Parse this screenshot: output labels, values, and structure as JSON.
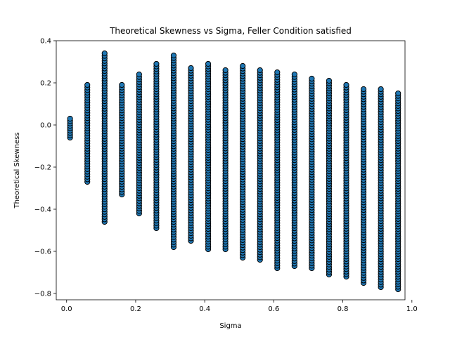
{
  "chart_data": {
    "type": "scatter",
    "title": "Theoretical Skewness vs Sigma, Feller Condition satisfied",
    "xlabel": "Sigma",
    "ylabel": "Theoretical Skewness",
    "xlim": [
      -0.03,
      0.98
    ],
    "ylim": [
      -0.83,
      0.4
    ],
    "xticks": [
      0.0,
      0.2,
      0.4,
      0.6,
      0.8,
      1.0
    ],
    "xtick_labels": [
      "0.0",
      "0.2",
      "0.4",
      "0.6",
      "0.8",
      "1.0"
    ],
    "yticks": [
      -0.8,
      -0.6,
      -0.4,
      -0.2,
      0.0,
      0.2,
      0.4
    ],
    "ytick_labels": [
      "−0.8",
      "−0.6",
      "−0.4",
      "−0.2",
      "0.0",
      "0.2",
      "0.4"
    ],
    "grid": false,
    "marker_color": "#1f77b4",
    "marker_edge_color": "#000000",
    "columns": [
      {
        "x": 0.01,
        "ymin": -0.06,
        "ymax": 0.03
      },
      {
        "x": 0.06,
        "ymin": -0.27,
        "ymax": 0.19
      },
      {
        "x": 0.11,
        "ymin": -0.46,
        "ymax": 0.34
      },
      {
        "x": 0.16,
        "ymin": -0.33,
        "ymax": 0.19
      },
      {
        "x": 0.21,
        "ymin": -0.42,
        "ymax": 0.24
      },
      {
        "x": 0.26,
        "ymin": -0.49,
        "ymax": 0.29
      },
      {
        "x": 0.31,
        "ymin": -0.58,
        "ymax": 0.33
      },
      {
        "x": 0.36,
        "ymin": -0.55,
        "ymax": 0.27
      },
      {
        "x": 0.41,
        "ymin": -0.59,
        "ymax": 0.29
      },
      {
        "x": 0.46,
        "ymin": -0.59,
        "ymax": 0.26
      },
      {
        "x": 0.51,
        "ymin": -0.63,
        "ymax": 0.28
      },
      {
        "x": 0.56,
        "ymin": -0.64,
        "ymax": 0.26
      },
      {
        "x": 0.61,
        "ymin": -0.68,
        "ymax": 0.25
      },
      {
        "x": 0.66,
        "ymin": -0.67,
        "ymax": 0.24
      },
      {
        "x": 0.71,
        "ymin": -0.68,
        "ymax": 0.22
      },
      {
        "x": 0.76,
        "ymin": -0.71,
        "ymax": 0.21
      },
      {
        "x": 0.81,
        "ymin": -0.72,
        "ymax": 0.19
      },
      {
        "x": 0.86,
        "ymin": -0.75,
        "ymax": 0.17
      },
      {
        "x": 0.91,
        "ymin": -0.77,
        "ymax": 0.17
      },
      {
        "x": 0.96,
        "ymin": -0.78,
        "ymax": 0.15
      }
    ]
  }
}
